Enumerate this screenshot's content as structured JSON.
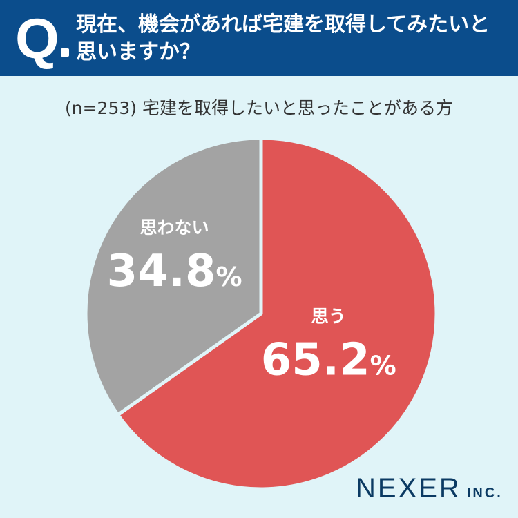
{
  "header": {
    "q_mark": "Q",
    "question": "現在、機会があれば宅建を取得してみたいと思いますか？"
  },
  "subtitle": "(n=253) 宅建を取得したいと思ったことがある方",
  "chart_data": {
    "type": "pie",
    "sample": "n=253",
    "slices": [
      {
        "label": "思う",
        "value": 65.2,
        "display": "65.2",
        "unit": "%",
        "color": "#e05555"
      },
      {
        "label": "思わない",
        "value": 34.8,
        "display": "34.8",
        "unit": "%",
        "color": "#a3a3a3"
      }
    ],
    "start_angle": "12 o'clock",
    "direction": "clockwise"
  },
  "colors": {
    "header_bg": "#0b4d8c",
    "background": "#e0f4f8",
    "separator": "#e0f4f8"
  },
  "logo": {
    "main": "NEXER",
    "sub": "INC."
  }
}
